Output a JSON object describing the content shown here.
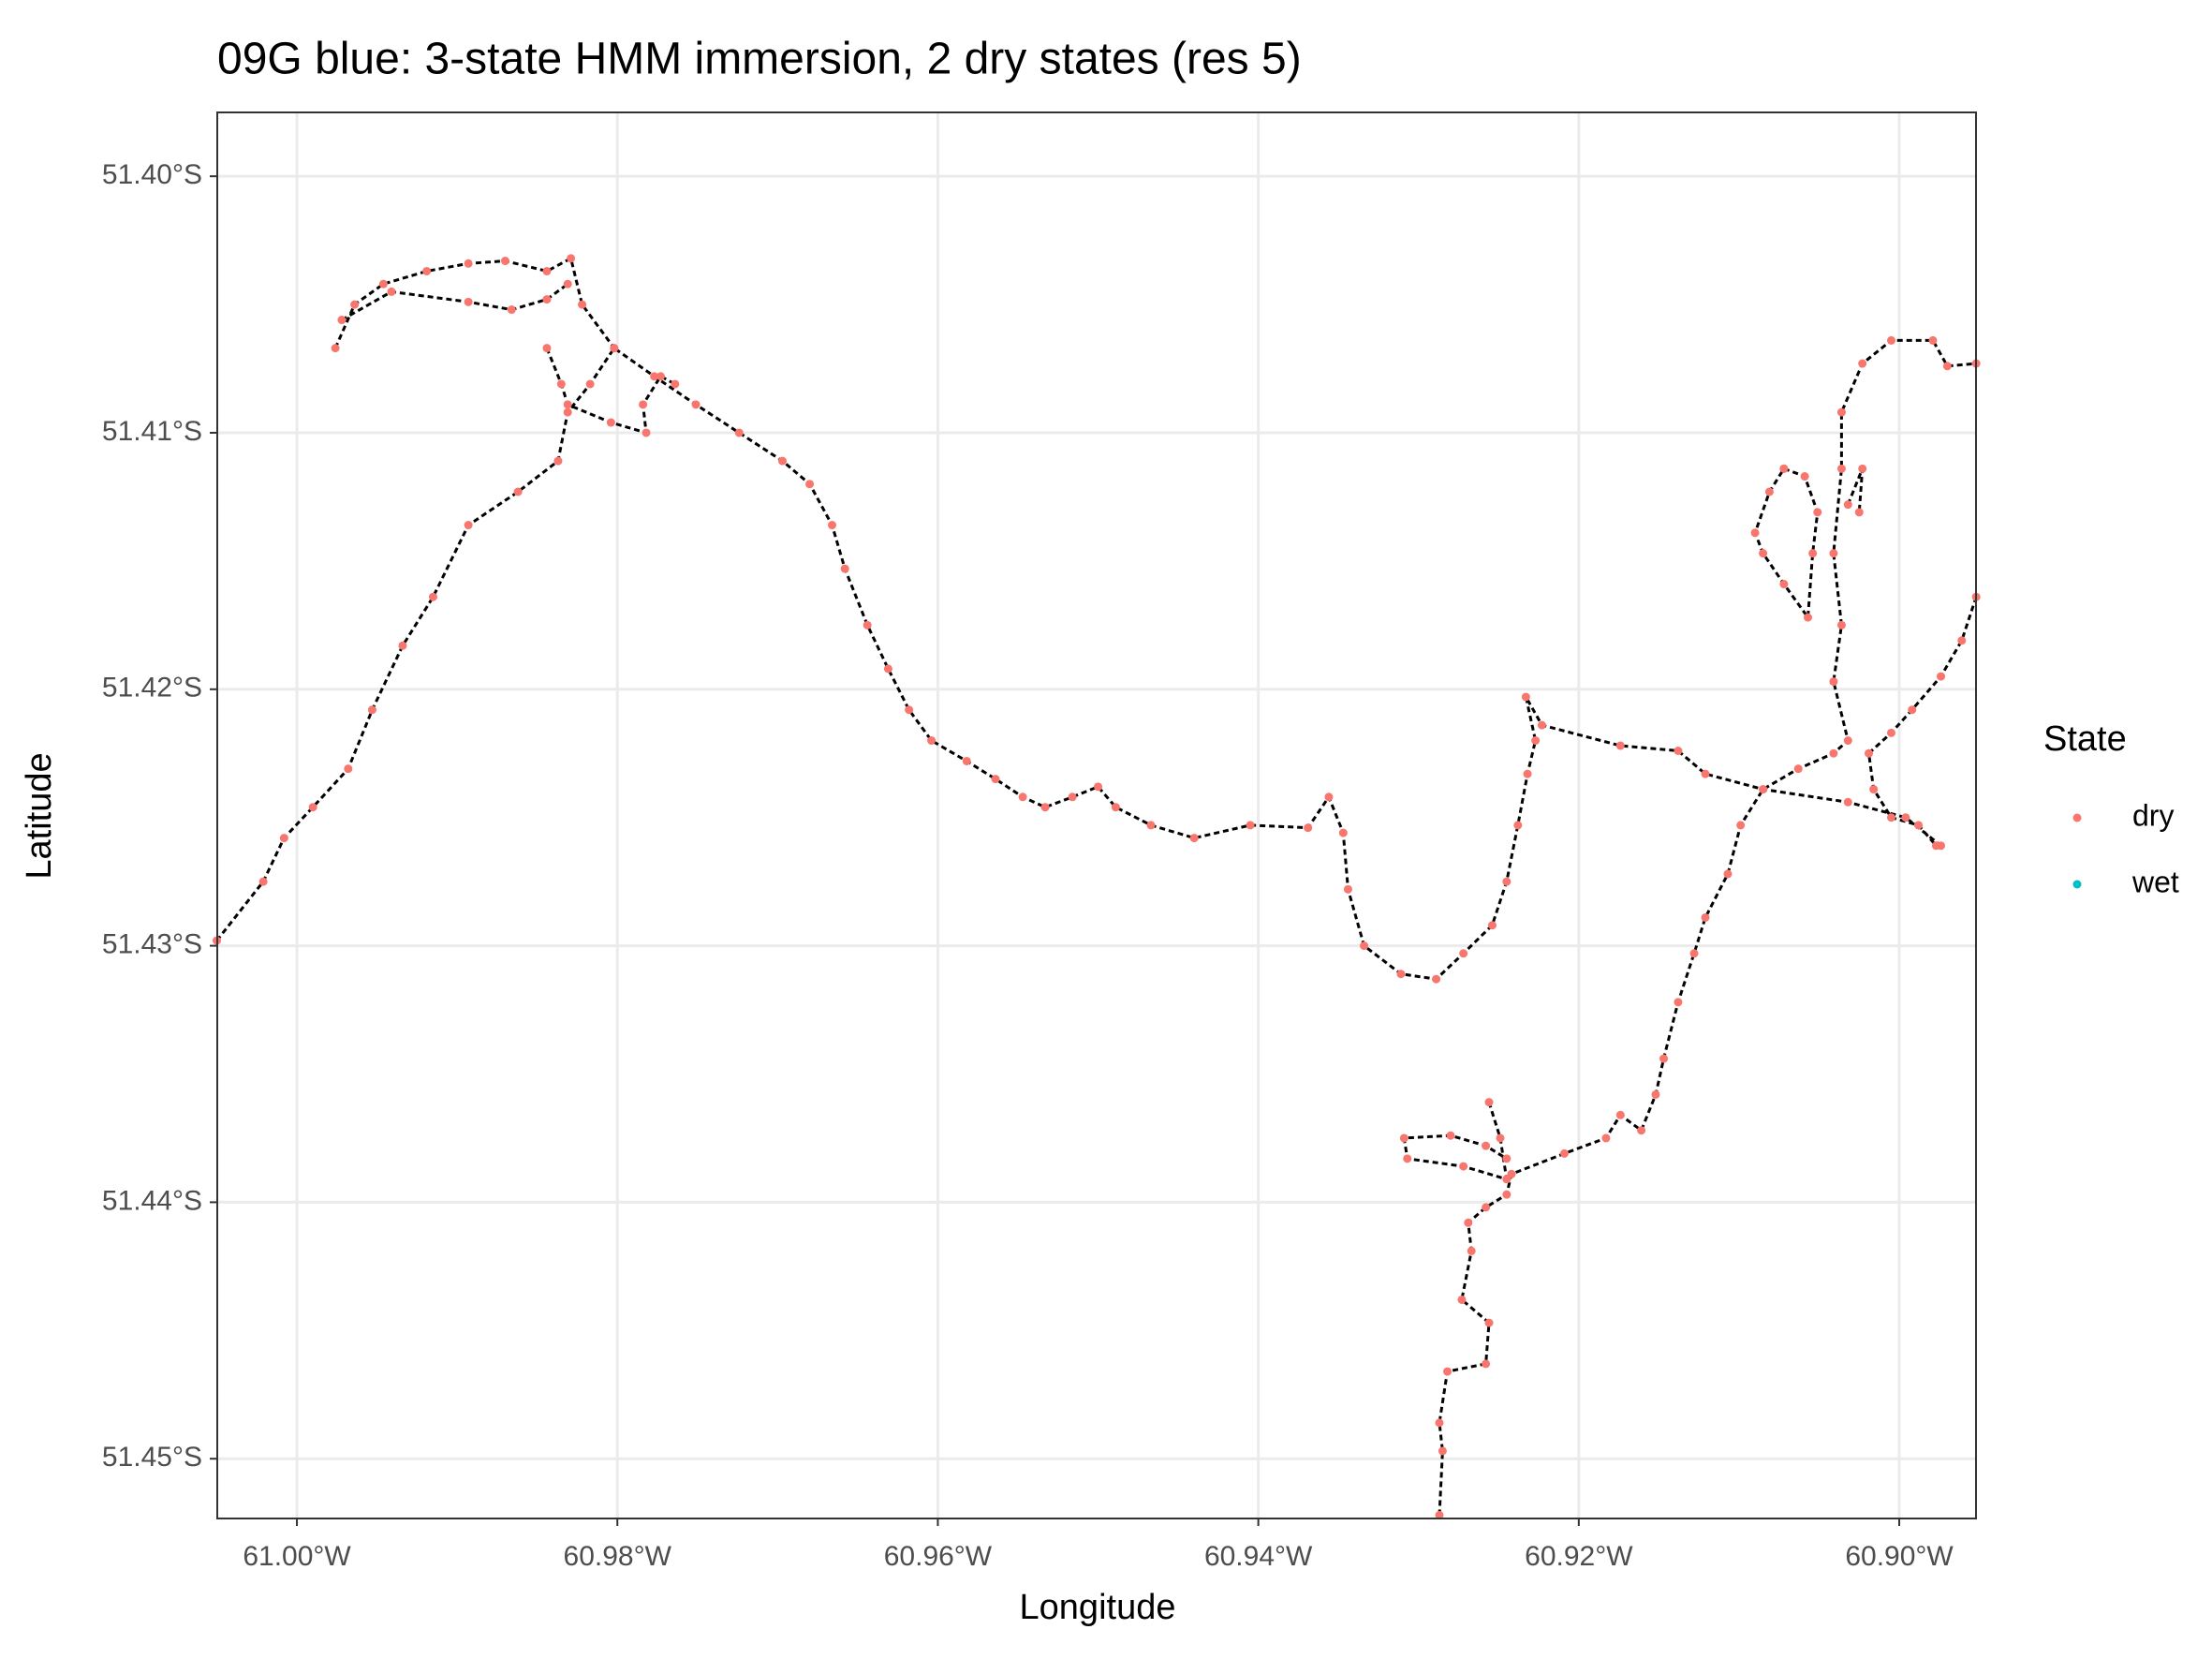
{
  "chart_data": {
    "type": "scatter",
    "title": "09G blue: 3-state HMM immersion, 2 dry states (res 5)",
    "x_label": "Longitude",
    "y_label": "Latitude",
    "legend_title": "State",
    "xlim": [
      -61.00497,
      -60.89521
    ],
    "ylim": [
      -51.45233,
      -51.39751
    ],
    "xticks": [
      {
        "value": -61.0,
        "label": "61.00°W"
      },
      {
        "value": -60.98,
        "label": "60.98°W"
      },
      {
        "value": -60.96,
        "label": "60.96°W"
      },
      {
        "value": -60.94,
        "label": "60.94°W"
      },
      {
        "value": -60.92,
        "label": "60.92°W"
      },
      {
        "value": -60.9,
        "label": "60.90°W"
      }
    ],
    "yticks": [
      {
        "value": -51.4,
        "label": "51.40°S"
      },
      {
        "value": -51.41,
        "label": "51.41°S"
      },
      {
        "value": -51.42,
        "label": "51.42°S"
      },
      {
        "value": -51.43,
        "label": "51.43°S"
      },
      {
        "value": -51.44,
        "label": "51.44°S"
      },
      {
        "value": -51.45,
        "label": "51.45°S"
      }
    ],
    "grid": true,
    "legend": "right",
    "path_color": "#000000",
    "series": [
      {
        "name": "dry",
        "color": "#F8766D",
        "x": [
          -61.005,
          -61.0021,
          -61.0008,
          -60.999,
          -60.9968,
          -60.9953,
          -60.9934,
          -60.9915,
          -60.9893,
          -60.9862,
          -60.9837,
          -60.9831,
          -60.9817,
          -60.9802,
          -60.9777,
          -60.9751,
          -60.9724,
          -60.9697,
          -60.968,
          -60.9666,
          -60.9658,
          -60.9644,
          -60.9631,
          -60.9618,
          -60.9604,
          -60.9582,
          -60.9564,
          -60.9547,
          -60.9533,
          -60.9516,
          -60.95,
          -60.9489,
          -60.9467,
          -60.944,
          -60.9405,
          -60.9369,
          -60.9356,
          -60.9347,
          -60.9344,
          -60.9334,
          -60.9311,
          -60.9289,
          -60.9272,
          -60.9254,
          -60.9245,
          -60.9238,
          -60.9232,
          -60.9227,
          -60.9233,
          -60.9223,
          -60.9174,
          -60.9138,
          -60.9121,
          -60.9085,
          -60.9032,
          -60.8996,
          -60.8974,
          null,
          -60.9976,
          -60.9964,
          -60.9946,
          -60.9919,
          -60.9893,
          -60.987,
          -60.9844,
          -60.9829,
          -60.9822,
          -60.9802,
          null,
          -60.9972,
          -60.9941,
          -60.9893,
          -60.9866,
          -60.9844,
          -60.9831,
          null,
          -60.9844,
          -60.9835,
          -60.9831,
          -60.9804,
          -60.9782,
          -60.9784,
          -60.9773,
          -60.9764,
          null,
          -60.9287,
          -60.9285,
          -60.9287,
          -60.9282,
          -60.9258,
          -60.9256,
          -60.9273,
          -60.9267,
          -60.9269,
          -60.9258,
          -60.9245,
          -60.9242,
          -60.9209,
          -60.9183,
          -60.9174,
          -60.9161,
          -60.9152,
          -60.9147,
          -60.9138,
          -60.9128,
          -60.9121,
          -60.9107,
          -60.9099,
          -60.9085,
          -60.9063,
          -60.9041,
          -60.9032,
          -60.9041,
          -60.9036,
          -60.9041,
          -60.9036,
          -60.9036,
          -60.9023,
          -60.9005,
          -60.8979,
          -60.897,
          -60.8952,
          null,
          -60.8952,
          -60.8961,
          -60.8974,
          -60.8992,
          -60.9005,
          -60.9019,
          -60.9016,
          -60.9005,
          -60.8988,
          -60.8977,
          null,
          -60.9072,
          -60.9059,
          -60.9051,
          -60.9054,
          -60.9057,
          -60.9072,
          -60.9085,
          -60.909,
          -60.9081,
          -60.9072,
          null,
          -60.9032,
          -60.9023,
          -60.9025,
          null,
          -60.9256,
          -60.9249,
          -60.9245,
          -60.9272,
          -60.9307,
          -60.9309,
          -60.928,
          -60.9258,
          -60.9245
        ],
        "y": [
          -51.4298,
          -51.4275,
          -51.4258,
          -51.4246,
          -51.4231,
          -51.4208,
          -51.4183,
          -51.4164,
          -51.4136,
          -51.4123,
          -51.4111,
          -51.4092,
          -51.4081,
          -51.4067,
          -51.4078,
          -51.4089,
          -51.41,
          -51.4111,
          -51.412,
          -51.4136,
          -51.4153,
          -51.4175,
          -51.4192,
          -51.4208,
          -51.422,
          -51.4228,
          -51.4235,
          -51.4242,
          -51.4246,
          -51.4242,
          -51.4238,
          -51.4246,
          -51.4253,
          -51.4258,
          -51.4253,
          -51.4254,
          -51.4242,
          -51.4256,
          -51.4278,
          -51.43,
          -51.4311,
          -51.4313,
          -51.4303,
          -51.4292,
          -51.4275,
          -51.4253,
          -51.4233,
          -51.422,
          -51.4203,
          -51.4214,
          -51.4222,
          -51.4224,
          -51.4233,
          -51.4239,
          -51.4244,
          -51.425,
          -51.4261,
          null,
          -51.4067,
          -51.405,
          -51.4042,
          -51.4037,
          -51.4034,
          -51.4033,
          -51.4037,
          -51.4032,
          -51.405,
          -51.4067,
          null,
          -51.4056,
          -51.4045,
          -51.4049,
          -51.4052,
          -51.4048,
          -51.4042,
          null,
          -51.4067,
          -51.4081,
          -51.4089,
          -51.4096,
          -51.41,
          -51.4089,
          -51.4078,
          -51.4081,
          null,
          -51.4522,
          -51.4497,
          -51.4486,
          -51.4466,
          -51.4463,
          -51.4447,
          -51.4438,
          -51.4419,
          -51.4408,
          -51.4402,
          -51.4397,
          -51.4389,
          -51.4381,
          -51.4375,
          -51.4366,
          -51.4372,
          -51.4358,
          -51.4344,
          -51.4322,
          -51.4303,
          -51.4289,
          -51.4272,
          -51.4253,
          -51.4239,
          -51.4231,
          -51.4225,
          -51.422,
          -51.4197,
          -51.4175,
          -51.4147,
          -51.4114,
          -51.4092,
          -51.4073,
          -51.4064,
          -51.4064,
          -51.4074,
          -51.4073,
          null,
          -51.4164,
          -51.4181,
          -51.4195,
          -51.4208,
          -51.4217,
          -51.4225,
          -51.4239,
          -51.425,
          -51.4253,
          -51.4261,
          null,
          -51.4114,
          -51.4117,
          -51.4131,
          -51.4147,
          -51.4172,
          -51.4159,
          -51.4147,
          -51.4139,
          -51.4123,
          -51.4114,
          null,
          -51.4128,
          -51.4114,
          -51.4131,
          null,
          -51.4361,
          -51.4375,
          -51.4391,
          -51.4386,
          -51.4383,
          -51.4375,
          -51.4374,
          -51.4378,
          -51.4383
        ]
      },
      {
        "name": "wet",
        "color": "#00BFC4",
        "x": [],
        "y": []
      }
    ]
  }
}
